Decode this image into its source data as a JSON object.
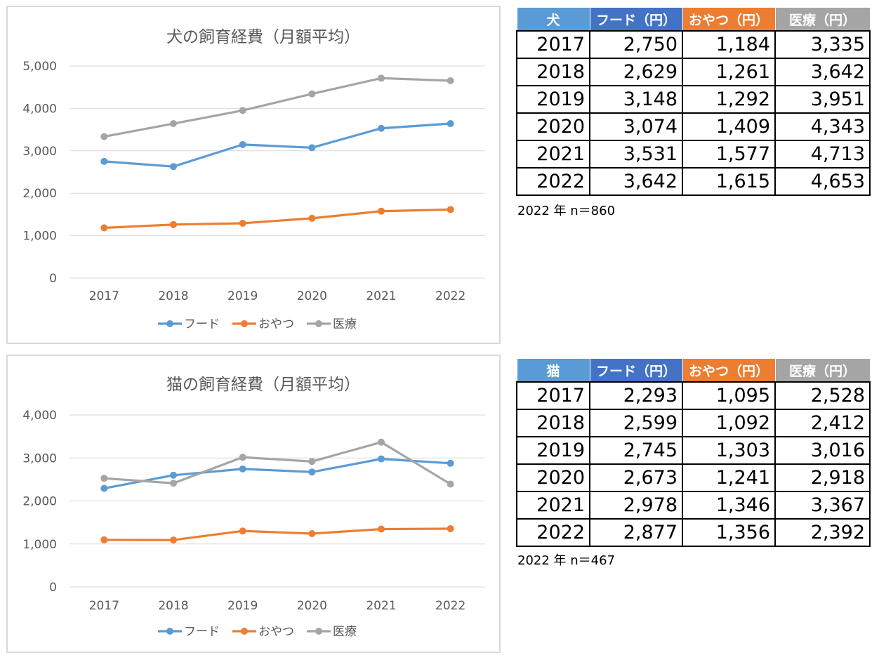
{
  "chart_data": [
    {
      "type": "line",
      "title": "犬の飼育経費（月額平均）",
      "x": [
        "2017",
        "2018",
        "2019",
        "2020",
        "2021",
        "2022"
      ],
      "ylim": [
        0,
        5000
      ],
      "yticks": [
        "0",
        "1,000",
        "2,000",
        "3,000",
        "4,000",
        "5,000"
      ],
      "grid": true,
      "legend": "bottom",
      "series": [
        {
          "name": "フード",
          "color": "#5b9bd5",
          "values": [
            2750,
            2629,
            3148,
            3074,
            3531,
            3642
          ]
        },
        {
          "name": "おやつ",
          "color": "#ed7d31",
          "values": [
            1184,
            1261,
            1292,
            1409,
            1577,
            1615
          ]
        },
        {
          "name": "医療",
          "color": "#a5a5a5",
          "values": [
            3335,
            3642,
            3951,
            4343,
            4713,
            4653
          ]
        }
      ]
    },
    {
      "type": "line",
      "title": "猫の飼育経費（月額平均）",
      "x": [
        "2017",
        "2018",
        "2019",
        "2020",
        "2021",
        "2022"
      ],
      "ylim": [
        0,
        4000
      ],
      "yticks": [
        "0",
        "1,000",
        "2,000",
        "3,000",
        "4,000"
      ],
      "grid": true,
      "legend": "bottom",
      "series": [
        {
          "name": "フード",
          "color": "#5b9bd5",
          "values": [
            2293,
            2599,
            2745,
            2673,
            2978,
            2877
          ]
        },
        {
          "name": "おやつ",
          "color": "#ed7d31",
          "values": [
            1095,
            1092,
            1303,
            1241,
            1346,
            1356
          ]
        },
        {
          "name": "医療",
          "color": "#a5a5a5",
          "values": [
            2528,
            2412,
            3016,
            2918,
            3367,
            2392
          ]
        }
      ]
    }
  ],
  "tables": {
    "dog": {
      "headers": [
        "犬",
        "フード（円）",
        "おやつ（円）",
        "医療（円）"
      ],
      "rows": [
        [
          "2017",
          "2,750",
          "1,184",
          "3,335"
        ],
        [
          "2018",
          "2,629",
          "1,261",
          "3,642"
        ],
        [
          "2019",
          "3,148",
          "1,292",
          "3,951"
        ],
        [
          "2020",
          "3,074",
          "1,409",
          "4,343"
        ],
        [
          "2021",
          "3,531",
          "1,577",
          "4,713"
        ],
        [
          "2022",
          "3,642",
          "1,615",
          "4,653"
        ]
      ],
      "note": "2022 年 n＝860"
    },
    "cat": {
      "headers": [
        "猫",
        "フード（円）",
        "おやつ（円）",
        "医療（円）"
      ],
      "rows": [
        [
          "2017",
          "2,293",
          "1,095",
          "2,528"
        ],
        [
          "2018",
          "2,599",
          "1,092",
          "2,412"
        ],
        [
          "2019",
          "2,745",
          "1,303",
          "3,016"
        ],
        [
          "2020",
          "2,673",
          "1,241",
          "2,918"
        ],
        [
          "2021",
          "2,978",
          "1,346",
          "3,367"
        ],
        [
          "2022",
          "2,877",
          "1,356",
          "2,392"
        ]
      ],
      "note": "2022 年 n＝467"
    }
  }
}
